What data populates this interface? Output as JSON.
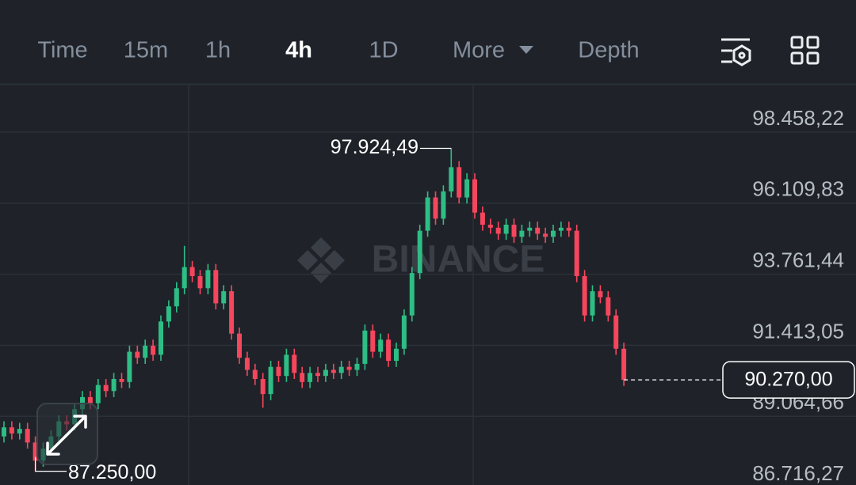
{
  "toolbar": {
    "tabs": [
      "Time",
      "15m",
      "1h",
      "4h",
      "1D",
      "More",
      "Depth"
    ],
    "active_tab": 3
  },
  "chart_data": {
    "type": "candlestick",
    "watermark": "BINANCE",
    "up_color": "#2ebd85",
    "down_color": "#f6465d",
    "ylim": [
      86795,
      100029
    ],
    "yticks": [
      {
        "value": 86716.27,
        "label": "86.716,27"
      },
      {
        "value": 89064.66,
        "label": "89.064,66"
      },
      {
        "value": 91413.05,
        "label": "91.413,05"
      },
      {
        "value": 93761.44,
        "label": "93.761,44"
      },
      {
        "value": 96109.83,
        "label": "96.109,83"
      },
      {
        "value": 98458.22,
        "label": "98.458,22"
      }
    ],
    "grid": true,
    "open": [
      88400,
      88700,
      88500,
      88650,
      88200,
      87600,
      88000,
      88400,
      88900,
      88800,
      89300,
      89700,
      89500,
      90100,
      89900,
      90300,
      90200,
      91200,
      91000,
      91400,
      91100,
      92200,
      92700,
      93300,
      94000,
      93700,
      93300,
      93900,
      92800,
      93200,
      91800,
      91000,
      90600,
      90300,
      89800,
      90700,
      90400,
      91100,
      90500,
      90200,
      90500,
      90400,
      90600,
      90500,
      90700,
      90600,
      90800,
      91900,
      91200,
      91600,
      90900,
      91300,
      92400,
      93800,
      95200,
      96300,
      95600,
      96500,
      97300,
      96300,
      96900,
      95800,
      95400,
      95300,
      95100,
      95400,
      95000,
      95200,
      95300,
      95100,
      95000,
      95200,
      95300,
      95200,
      93700,
      92400,
      93200,
      93000,
      92400,
      91300
    ],
    "high": [
      88900,
      88900,
      88850,
      88850,
      88400,
      88200,
      88600,
      89100,
      89100,
      89500,
      89900,
      89900,
      90300,
      90300,
      90500,
      90500,
      91400,
      91400,
      91600,
      91600,
      92400,
      92900,
      93500,
      94700,
      94200,
      93900,
      94100,
      94100,
      93400,
      93400,
      92000,
      91200,
      90800,
      90500,
      90900,
      90900,
      91300,
      91300,
      90700,
      90700,
      90700,
      90800,
      90800,
      90900,
      90900,
      91000,
      92100,
      92100,
      91800,
      91800,
      91500,
      92600,
      94000,
      95400,
      96500,
      96500,
      96700,
      97924.49,
      97500,
      97100,
      97100,
      96000,
      95600,
      95500,
      95600,
      95600,
      95400,
      95500,
      95500,
      95300,
      95400,
      95500,
      95500,
      95400,
      93900,
      93400,
      93400,
      93200,
      92600,
      91500
    ],
    "low": [
      88200,
      88300,
      88300,
      88000,
      87250,
      87400,
      87800,
      88200,
      88600,
      88600,
      89100,
      89300,
      89300,
      89700,
      89700,
      90000,
      90000,
      90800,
      90800,
      90900,
      90900,
      92000,
      92500,
      93100,
      93500,
      93100,
      93100,
      92600,
      92600,
      91600,
      90800,
      90400,
      90100,
      89350,
      89600,
      90200,
      90200,
      90300,
      90000,
      90000,
      90200,
      90200,
      90300,
      90300,
      90400,
      90400,
      90600,
      91000,
      91000,
      90700,
      90700,
      91100,
      92200,
      93600,
      95000,
      95400,
      95400,
      96300,
      96100,
      96100,
      95600,
      95200,
      95100,
      94900,
      94900,
      94800,
      94800,
      95000,
      94900,
      94800,
      94800,
      95000,
      95000,
      93500,
      92200,
      92200,
      92800,
      92200,
      91100,
      90070
    ],
    "close": [
      88700,
      88500,
      88650,
      88200,
      87600,
      88000,
      88400,
      88900,
      88800,
      89300,
      89700,
      89500,
      90100,
      89900,
      90300,
      90200,
      91200,
      91000,
      91400,
      91100,
      92200,
      92700,
      93300,
      94000,
      93700,
      93300,
      93900,
      92800,
      93200,
      91800,
      91000,
      90600,
      90300,
      89800,
      90700,
      90400,
      91100,
      90500,
      90200,
      90500,
      90400,
      90600,
      90500,
      90700,
      90600,
      90800,
      91900,
      91200,
      91600,
      90900,
      91300,
      92400,
      93800,
      95200,
      96300,
      95600,
      96500,
      97300,
      96300,
      96900,
      95800,
      95400,
      95300,
      95100,
      95400,
      95000,
      95200,
      95300,
      95100,
      95000,
      95200,
      95300,
      95200,
      93700,
      92400,
      93200,
      93000,
      92400,
      91300,
      90270
    ],
    "max_label": {
      "value": 97924.49,
      "label": "97.924,49"
    },
    "min_label": {
      "value": 87250,
      "label": "87.250,00"
    },
    "last_price": {
      "value": 90270,
      "label": "90.270,00"
    }
  }
}
